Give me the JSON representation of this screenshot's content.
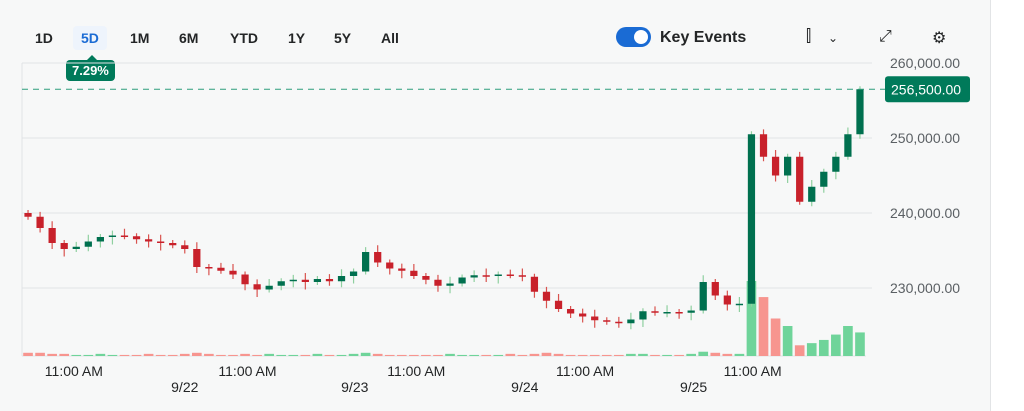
{
  "ranges": [
    "1D",
    "5D",
    "1M",
    "6M",
    "YTD",
    "1Y",
    "5Y",
    "All"
  ],
  "active_range": "5D",
  "change_badge": "7.29%",
  "key_events": {
    "label": "Key Events",
    "enabled": true
  },
  "icons": {
    "chart_type": "candlestick-icon",
    "dropdown": "chevron-down-icon",
    "expand": "expand-icon",
    "settings": "gear-icon"
  },
  "current_price_label": "256,500.00",
  "colors": {
    "up": "#00704f",
    "down": "#c8212b",
    "up_volume": "#6fd49a",
    "down_volume": "#f7958f",
    "accent": "#007a5a",
    "toggle": "#1a6bd4"
  },
  "chart_data": {
    "type": "candlestick",
    "y_ticks": [
      "260,000.00",
      "250,000.00",
      "240,000.00",
      "230,000.00"
    ],
    "y_tick_values": [
      260000,
      250000,
      240000,
      230000
    ],
    "ylim": [
      220500,
      262000
    ],
    "last_price": 256500,
    "x_labels": [
      "11:00 AM",
      "9/22",
      "11:00 AM",
      "9/23",
      "11:00 AM",
      "9/24",
      "11:00 AM",
      "9/25",
      "11:00 AM"
    ],
    "x_label_index": [
      4.3,
      13.5,
      18.7,
      27.6,
      32.7,
      41.7,
      46.7,
      55.7,
      60.6
    ],
    "first_open": 240000,
    "closes": [
      239500,
      238000,
      236000,
      235200,
      235500,
      236200,
      236800,
      237000,
      236900,
      236500,
      236200,
      236000,
      235700,
      235200,
      232800,
      232700,
      232300,
      231800,
      230500,
      229800,
      230300,
      230900,
      231100,
      230800,
      231200,
      230900,
      231600,
      232200,
      234800,
      233400,
      232600,
      232300,
      231600,
      231100,
      230300,
      230600,
      231400,
      231700,
      231600,
      231800,
      231700,
      231500,
      229500,
      228300,
      227200,
      226600,
      226200,
      225700,
      225500,
      225300,
      225800,
      226900,
      226700,
      226800,
      226700,
      227000,
      230800,
      229000,
      227800,
      227900,
      250500,
      247500,
      245000,
      247500,
      241500,
      243500,
      245500,
      247500,
      250500,
      256500
    ],
    "volume": [
      3,
      3,
      2,
      2,
      1,
      1,
      2,
      1,
      1,
      1,
      2,
      1,
      1,
      2,
      3,
      2,
      1,
      1,
      2,
      1,
      2,
      1,
      1,
      1,
      2,
      1,
      1,
      2,
      3,
      2,
      1,
      1,
      1,
      1,
      1,
      2,
      1,
      1,
      1,
      1,
      2,
      1,
      2,
      3,
      2,
      1,
      1,
      1,
      1,
      1,
      2,
      2,
      1,
      1,
      1,
      2,
      4,
      3,
      2,
      2,
      70,
      55,
      35,
      28,
      10,
      12,
      15,
      20,
      28,
      22
    ]
  }
}
